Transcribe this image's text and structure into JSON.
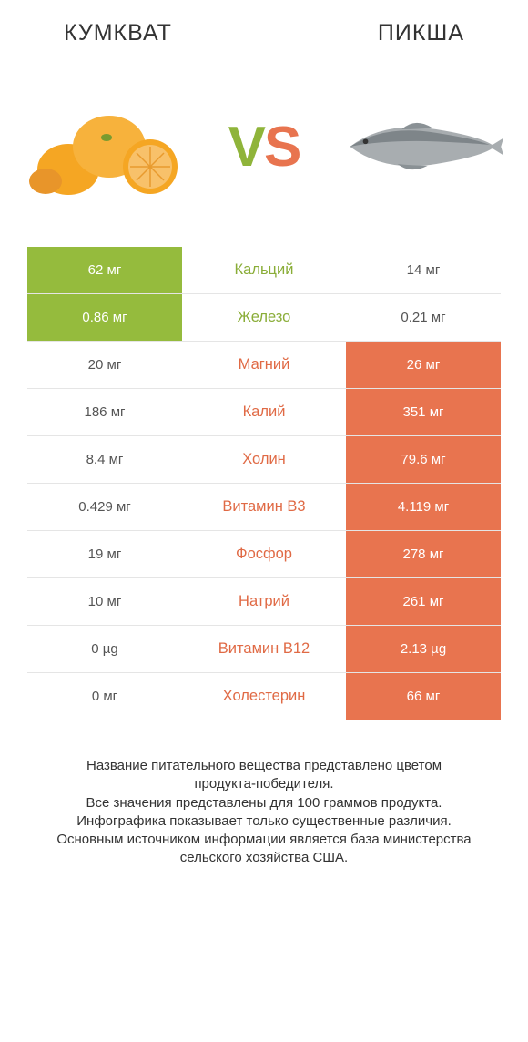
{
  "header": {
    "left": "КУМКВАТ",
    "right": "ПИКША"
  },
  "vs": {
    "v": "V",
    "s": "S"
  },
  "colors": {
    "green": "#95bb3d",
    "coral": "#e8744f",
    "green_text": "#8aad38",
    "coral_text": "#e06a45",
    "row_border": "#e5e5e5",
    "bg": "#ffffff",
    "kumquat_fill": "#f5a623",
    "kumquat_dark": "#d98c12",
    "fish_body": "#9fa3a6",
    "fish_dark": "#6f7679"
  },
  "table": {
    "rows": [
      {
        "left": "62 мг",
        "mid": "Кальций",
        "right": "14 мг",
        "winner": "left"
      },
      {
        "left": "0.86 мг",
        "mid": "Железо",
        "right": "0.21 мг",
        "winner": "left"
      },
      {
        "left": "20 мг",
        "mid": "Магний",
        "right": "26 мг",
        "winner": "right"
      },
      {
        "left": "186 мг",
        "mid": "Калий",
        "right": "351 мг",
        "winner": "right"
      },
      {
        "left": "8.4 мг",
        "mid": "Холин",
        "right": "79.6 мг",
        "winner": "right"
      },
      {
        "left": "0.429 мг",
        "mid": "Витамин B3",
        "right": "4.119 мг",
        "winner": "right"
      },
      {
        "left": "19 мг",
        "mid": "Фосфор",
        "right": "278 мг",
        "winner": "right"
      },
      {
        "left": "10 мг",
        "mid": "Натрий",
        "right": "261 мг",
        "winner": "right"
      },
      {
        "left": "0 µg",
        "mid": "Витамин B12",
        "right": "2.13 µg",
        "winner": "right"
      },
      {
        "left": "0 мг",
        "mid": "Холестерин",
        "right": "66 мг",
        "winner": "right"
      }
    ]
  },
  "footnote": {
    "l1": "Название питательного вещества представлено цветом",
    "l2": "продукта-победителя.",
    "l3": "Все значения представлены для 100 граммов продукта.",
    "l4": "Инфографика показывает только существенные различия.",
    "l5": "Основным источником информации является база министерства",
    "l6": "сельского хозяйства США."
  }
}
